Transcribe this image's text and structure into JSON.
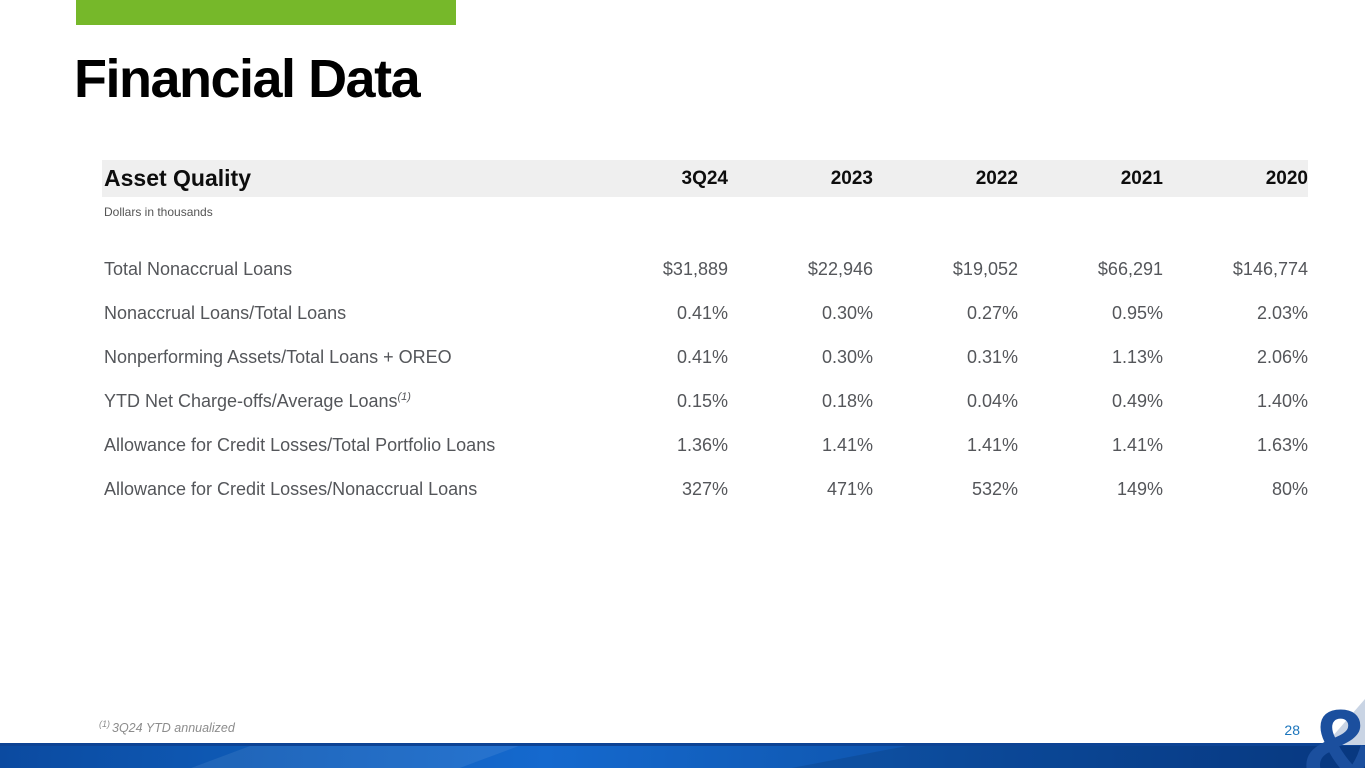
{
  "slide": {
    "title": "Financial Data",
    "page_number": "28",
    "footnote_marker": "(1)",
    "footnote_text": "3Q24 YTD annualized",
    "logo_glyph": "&"
  },
  "table": {
    "title": "Asset Quality",
    "subtitle": "Dollars in thousands",
    "columns": [
      "3Q24",
      "2023",
      "2022",
      "2021",
      "2020"
    ],
    "rows": [
      {
        "label": "Total Nonaccrual Loans",
        "sup": "",
        "values": [
          "$31,889",
          "$22,946",
          "$19,052",
          "$66,291",
          "$146,774"
        ]
      },
      {
        "label": "Nonaccrual Loans/Total Loans",
        "sup": "",
        "values": [
          "0.41%",
          "0.30%",
          "0.27%",
          "0.95%",
          "2.03%"
        ]
      },
      {
        "label": "Nonperforming Assets/Total Loans + OREO",
        "sup": "",
        "values": [
          "0.41%",
          "0.30%",
          "0.31%",
          "1.13%",
          "2.06%"
        ]
      },
      {
        "label": "YTD Net Charge-offs/Average Loans",
        "sup": "(1)",
        "values": [
          "0.15%",
          "0.18%",
          "0.04%",
          "0.49%",
          "1.40%"
        ]
      },
      {
        "label": "Allowance for Credit Losses/Total Portfolio Loans",
        "sup": "",
        "values": [
          "1.36%",
          "1.41%",
          "1.41%",
          "1.41%",
          "1.63%"
        ]
      },
      {
        "label": "Allowance for Credit Losses/Nonaccrual Loans",
        "sup": "",
        "values": [
          "327%",
          "471%",
          "532%",
          "149%",
          "80%"
        ]
      }
    ]
  },
  "colors": {
    "accent_green": "#76b82a",
    "header_bg": "#efefef",
    "body_text": "#54565a",
    "page_number_blue": "#1b75bc",
    "logo_blue": "#1b4f9e",
    "band_blue_bright": "#1569ce",
    "band_blue_dark": "#093e8e"
  }
}
